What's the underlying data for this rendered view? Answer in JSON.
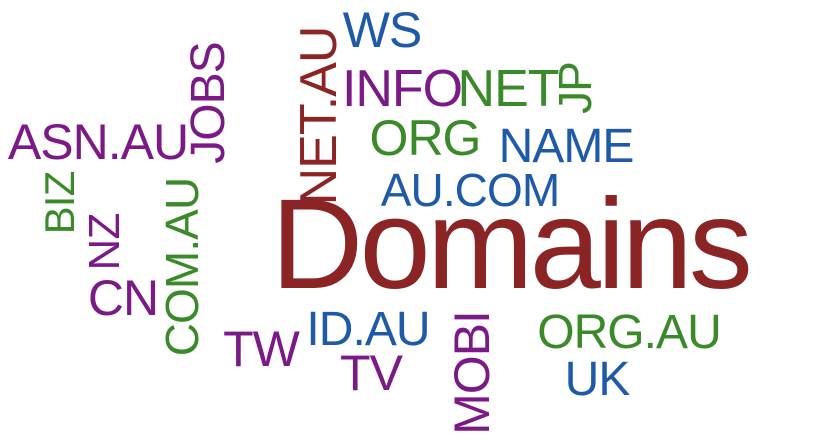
{
  "palette": {
    "purple": "#7b1a86",
    "blue": "#1e5aa8",
    "green": "#3b8a2a",
    "maroon": "#8b2424"
  },
  "words": [
    {
      "key": "domains",
      "text": "Domains",
      "color": "maroon"
    },
    {
      "key": "ws",
      "text": "WS",
      "color": "blue"
    },
    {
      "key": "jobs",
      "text": "JOBS",
      "color": "purple"
    },
    {
      "key": "net_au",
      "text": "NET.AU",
      "color": "maroon"
    },
    {
      "key": "info",
      "text": "INFO",
      "color": "purple"
    },
    {
      "key": "net",
      "text": "NET",
      "color": "green"
    },
    {
      "key": "jp",
      "text": "JP",
      "color": "green"
    },
    {
      "key": "asn_au",
      "text": "ASN.AU",
      "color": "purple"
    },
    {
      "key": "org",
      "text": "ORG",
      "color": "green"
    },
    {
      "key": "name",
      "text": "NAME",
      "color": "blue"
    },
    {
      "key": "biz",
      "text": "BIZ",
      "color": "green"
    },
    {
      "key": "au_com",
      "text": "AU.COM",
      "color": "blue"
    },
    {
      "key": "nz",
      "text": "NZ",
      "color": "purple"
    },
    {
      "key": "com_au",
      "text": "COM.AU",
      "color": "green"
    },
    {
      "key": "cn",
      "text": "CN",
      "color": "purple"
    },
    {
      "key": "tw",
      "text": "TW",
      "color": "purple"
    },
    {
      "key": "id_au",
      "text": "ID.AU",
      "color": "blue"
    },
    {
      "key": "tv",
      "text": "TV",
      "color": "purple"
    },
    {
      "key": "mobi",
      "text": "MOBI",
      "color": "purple"
    },
    {
      "key": "org_au",
      "text": "ORG.AU",
      "color": "green"
    },
    {
      "key": "uk",
      "text": "UK",
      "color": "blue"
    }
  ]
}
